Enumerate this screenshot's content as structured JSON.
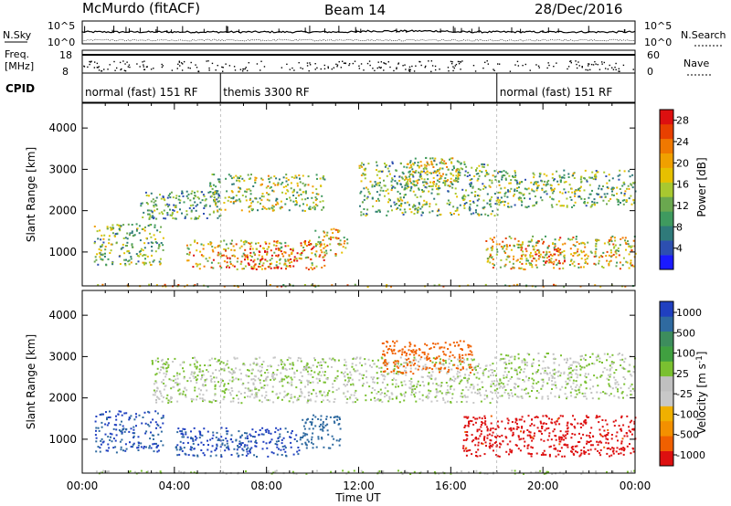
{
  "header": {
    "station": "McMurdo (fitACF)",
    "beam": "Beam 14",
    "date": "28/Dec/2016"
  },
  "top_panel": {
    "nsky_label": "N.Sky",
    "nsky_ticks": [
      "10^5",
      "10^0"
    ],
    "nsearch_label": "N.Search",
    "freq_label_1": "Freq.",
    "freq_label_2": "[MHz]",
    "freq_ticks": [
      "18",
      "8"
    ],
    "nave_label": "Nave",
    "nave_ticks": [
      "60",
      "0"
    ],
    "cpid_label": "CPID",
    "cpid_segments": [
      {
        "label": "normal (fast) 151 RF",
        "start_hour": 0,
        "end_hour": 6
      },
      {
        "label": "themis 3300 RF",
        "start_hour": 6,
        "end_hour": 18
      },
      {
        "label": "normal (fast) 151 RF",
        "start_hour": 18,
        "end_hour": 24
      }
    ]
  },
  "colors": {
    "power_scale": [
      "#1a1aff",
      "#2d4fb0",
      "#2f7a7a",
      "#3f9a5f",
      "#6aa84f",
      "#a8c830",
      "#e6c000",
      "#f0a000",
      "#f07800",
      "#e84000",
      "#dd1010"
    ],
    "velocity_scale": [
      "#dd1010",
      "#f06000",
      "#f39000",
      "#f0b000",
      "#c8c8c8",
      "#c0c0c0",
      "#7ac030",
      "#40a040",
      "#3d8d5d",
      "#2f6aa0",
      "#2040c0"
    ]
  },
  "chart_data": [
    {
      "type": "heatmap",
      "panel": "power",
      "xlabel": "",
      "ylabel": "Slant Range [km]",
      "x_ticks": [
        "00:00",
        "04:00",
        "08:00",
        "12:00",
        "16:00",
        "20:00",
        "00:00"
      ],
      "xlim_hours": [
        0,
        24
      ],
      "y_ticks": [
        1000,
        2000,
        3000,
        4000
      ],
      "ylim": [
        180,
        4600
      ],
      "colorbar_label": "Power [dB]",
      "colorbar_ticks": [
        4,
        8,
        12,
        16,
        20,
        24,
        28
      ],
      "colorbar_range": [
        0,
        30
      ],
      "echo_regions": [
        {
          "t_start": 0.3,
          "t_end": 24,
          "r_start": 180,
          "r_end": 230,
          "value": 18
        },
        {
          "t_start": 0.5,
          "t_end": 3.5,
          "r_start": 700,
          "r_end": 1700,
          "value": 12
        },
        {
          "t_start": 2.5,
          "t_end": 6,
          "r_start": 1800,
          "r_end": 2500,
          "value": 10
        },
        {
          "t_start": 4.5,
          "t_end": 10.5,
          "r_start": 600,
          "r_end": 1300,
          "value": 20
        },
        {
          "t_start": 5.5,
          "t_end": 10.5,
          "r_start": 2000,
          "r_end": 2900,
          "value": 14
        },
        {
          "t_start": 7,
          "t_end": 9.2,
          "r_start": 600,
          "r_end": 1100,
          "value": 27
        },
        {
          "t_start": 10,
          "t_end": 11.5,
          "r_start": 900,
          "r_end": 1600,
          "value": 18
        },
        {
          "t_start": 12,
          "t_end": 18,
          "r_start": 1900,
          "r_end": 3200,
          "value": 12
        },
        {
          "t_start": 14,
          "t_end": 16.5,
          "r_start": 2600,
          "r_end": 3300,
          "value": 16
        },
        {
          "t_start": 17.5,
          "t_end": 24,
          "r_start": 600,
          "r_end": 1400,
          "value": 18
        },
        {
          "t_start": 19,
          "t_end": 21,
          "r_start": 700,
          "r_end": 1100,
          "value": 24
        },
        {
          "t_start": 18,
          "t_end": 24,
          "r_start": 2100,
          "r_end": 3000,
          "value": 12
        }
      ]
    },
    {
      "type": "heatmap",
      "panel": "velocity",
      "xlabel": "Time UT",
      "ylabel": "Slant Range [km]",
      "x_ticks": [
        "00:00",
        "04:00",
        "08:00",
        "12:00",
        "16:00",
        "20:00",
        "00:00"
      ],
      "xlim_hours": [
        0,
        24
      ],
      "y_ticks": [
        1000,
        2000,
        3000,
        4000
      ],
      "ylim": [
        180,
        4600
      ],
      "colorbar_label": "Velocity [m s⁻¹]",
      "colorbar_ticks": [
        "1000",
        "500",
        "100",
        "25",
        "-25",
        "-100",
        "-500",
        "-1000"
      ],
      "echo_regions": [
        {
          "t_start": 0.3,
          "t_end": 24,
          "r_start": 180,
          "r_end": 260,
          "value": 0
        },
        {
          "t_start": 0.5,
          "t_end": 3.5,
          "r_start": 700,
          "r_end": 1700,
          "value": 300
        },
        {
          "t_start": 4,
          "t_end": 9.5,
          "r_start": 600,
          "r_end": 1300,
          "value": 300
        },
        {
          "t_start": 9.5,
          "t_end": 11.2,
          "r_start": 800,
          "r_end": 1600,
          "value": 150
        },
        {
          "t_start": 3,
          "t_end": 18,
          "r_start": 1900,
          "r_end": 3000,
          "value": 0
        },
        {
          "t_start": 13,
          "t_end": 17,
          "r_start": 2600,
          "r_end": 3400,
          "value": -150
        },
        {
          "t_start": 16.5,
          "t_end": 24,
          "r_start": 600,
          "r_end": 1600,
          "value": -400
        },
        {
          "t_start": 18,
          "t_end": 24,
          "r_start": 2000,
          "r_end": 3100,
          "value": 0
        }
      ]
    }
  ],
  "axis_titles": {
    "time": "Time UT",
    "slant_range": "Slant Range [km]",
    "power": "Power [dB]",
    "velocity": "Velocity [m s",
    "velocity_exp": "-1",
    "velocity_close": "]"
  }
}
